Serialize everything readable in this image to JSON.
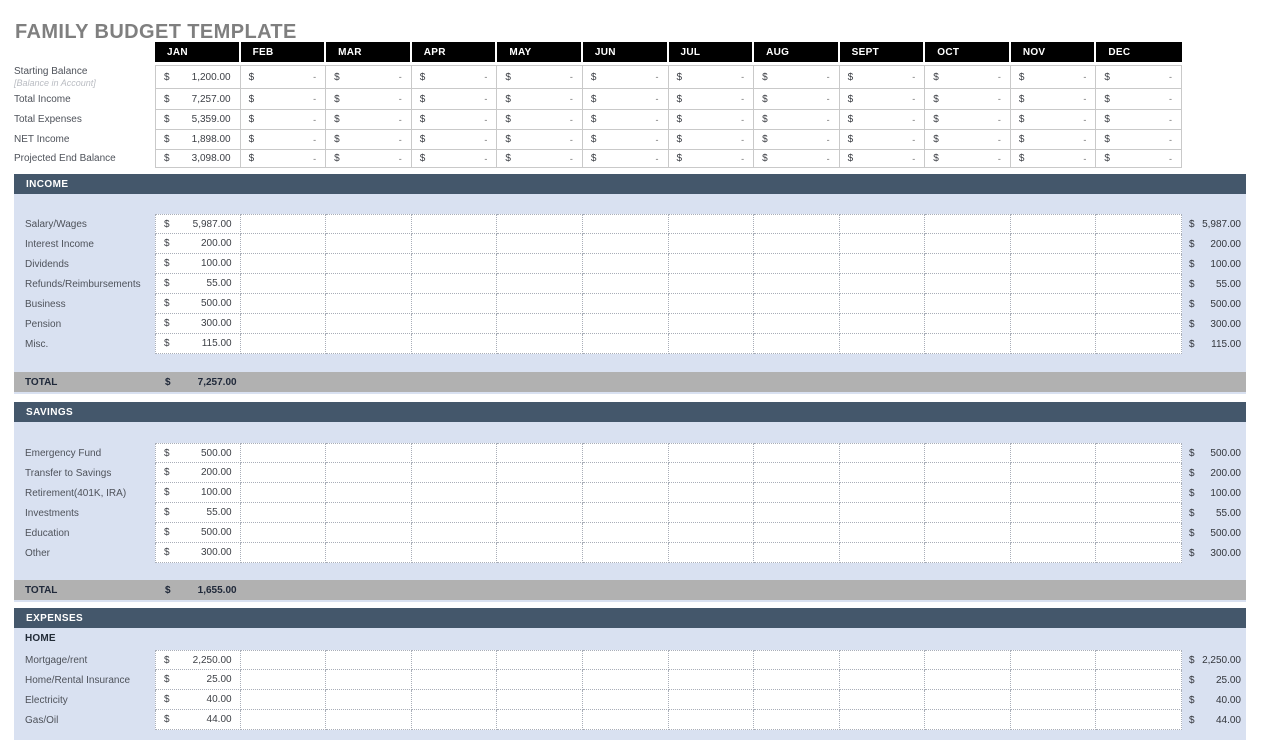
{
  "title": "FAMILY BUDGET TEMPLATE",
  "currency": "$",
  "empty_value": "-",
  "months": [
    "JAN",
    "FEB",
    "MAR",
    "APR",
    "MAY",
    "JUN",
    "JUL",
    "AUG",
    "SEPT",
    "OCT",
    "NOV",
    "DEC"
  ],
  "colors": {
    "title_text": "#7f7f7f",
    "month_header_bg": "#000000",
    "month_header_text": "#ffffff",
    "section_header_bg": "#44576b",
    "section_panel_bg": "#d9e1f1",
    "total_row_bg": "#b1b1b1",
    "label_text": "#4e525a",
    "value_text": "#3c3f45",
    "sublabel_text": "#b9bcc2",
    "solid_grid_border": "#c9c9c9",
    "dotted_grid_border": "#a9aeb8"
  },
  "summary": {
    "rows": [
      {
        "label": "Starting Balance",
        "sublabel": "[Balance in Account]",
        "jan": "1,200.00"
      },
      {
        "label": "Total Income",
        "jan": "7,257.00"
      },
      {
        "label": "Total Expenses",
        "jan": "5,359.00"
      },
      {
        "label": "NET Income",
        "jan": "1,898.00"
      },
      {
        "label": "Projected End Balance",
        "jan": "3,098.00"
      }
    ]
  },
  "sections": [
    {
      "name": "INCOME",
      "total_label": "TOTAL",
      "total": "7,257.00",
      "rows": [
        {
          "label": "Salary/Wages",
          "jan": "5,987.00",
          "total": "5,987.00"
        },
        {
          "label": "Interest Income",
          "jan": "200.00",
          "total": "200.00"
        },
        {
          "label": "Dividends",
          "jan": "100.00",
          "total": "100.00"
        },
        {
          "label": "Refunds/Reimbursements",
          "jan": "55.00",
          "total": "55.00"
        },
        {
          "label": "Business",
          "jan": "500.00",
          "total": "500.00"
        },
        {
          "label": "Pension",
          "jan": "300.00",
          "total": "300.00"
        },
        {
          "label": "Misc.",
          "jan": "115.00",
          "total": "115.00"
        }
      ]
    },
    {
      "name": "SAVINGS",
      "total_label": "TOTAL",
      "total": "1,655.00",
      "rows": [
        {
          "label": "Emergency Fund",
          "jan": "500.00",
          "total": "500.00"
        },
        {
          "label": "Transfer to Savings",
          "jan": "200.00",
          "total": "200.00"
        },
        {
          "label": "Retirement(401K, IRA)",
          "jan": "100.00",
          "total": "100.00"
        },
        {
          "label": "Investments",
          "jan": "55.00",
          "total": "55.00"
        },
        {
          "label": "Education",
          "jan": "500.00",
          "total": "500.00"
        },
        {
          "label": "Other",
          "jan": "300.00",
          "total": "300.00"
        }
      ]
    },
    {
      "name": "EXPENSES",
      "subheader": "HOME",
      "rows": [
        {
          "label": "Mortgage/rent",
          "jan": "2,250.00",
          "total": "2,250.00"
        },
        {
          "label": "Home/Rental Insurance",
          "jan": "25.00",
          "total": "25.00"
        },
        {
          "label": "Electricity",
          "jan": "40.00",
          "total": "40.00"
        },
        {
          "label": "Gas/Oil",
          "jan": "44.00",
          "total": "44.00"
        }
      ]
    }
  ]
}
